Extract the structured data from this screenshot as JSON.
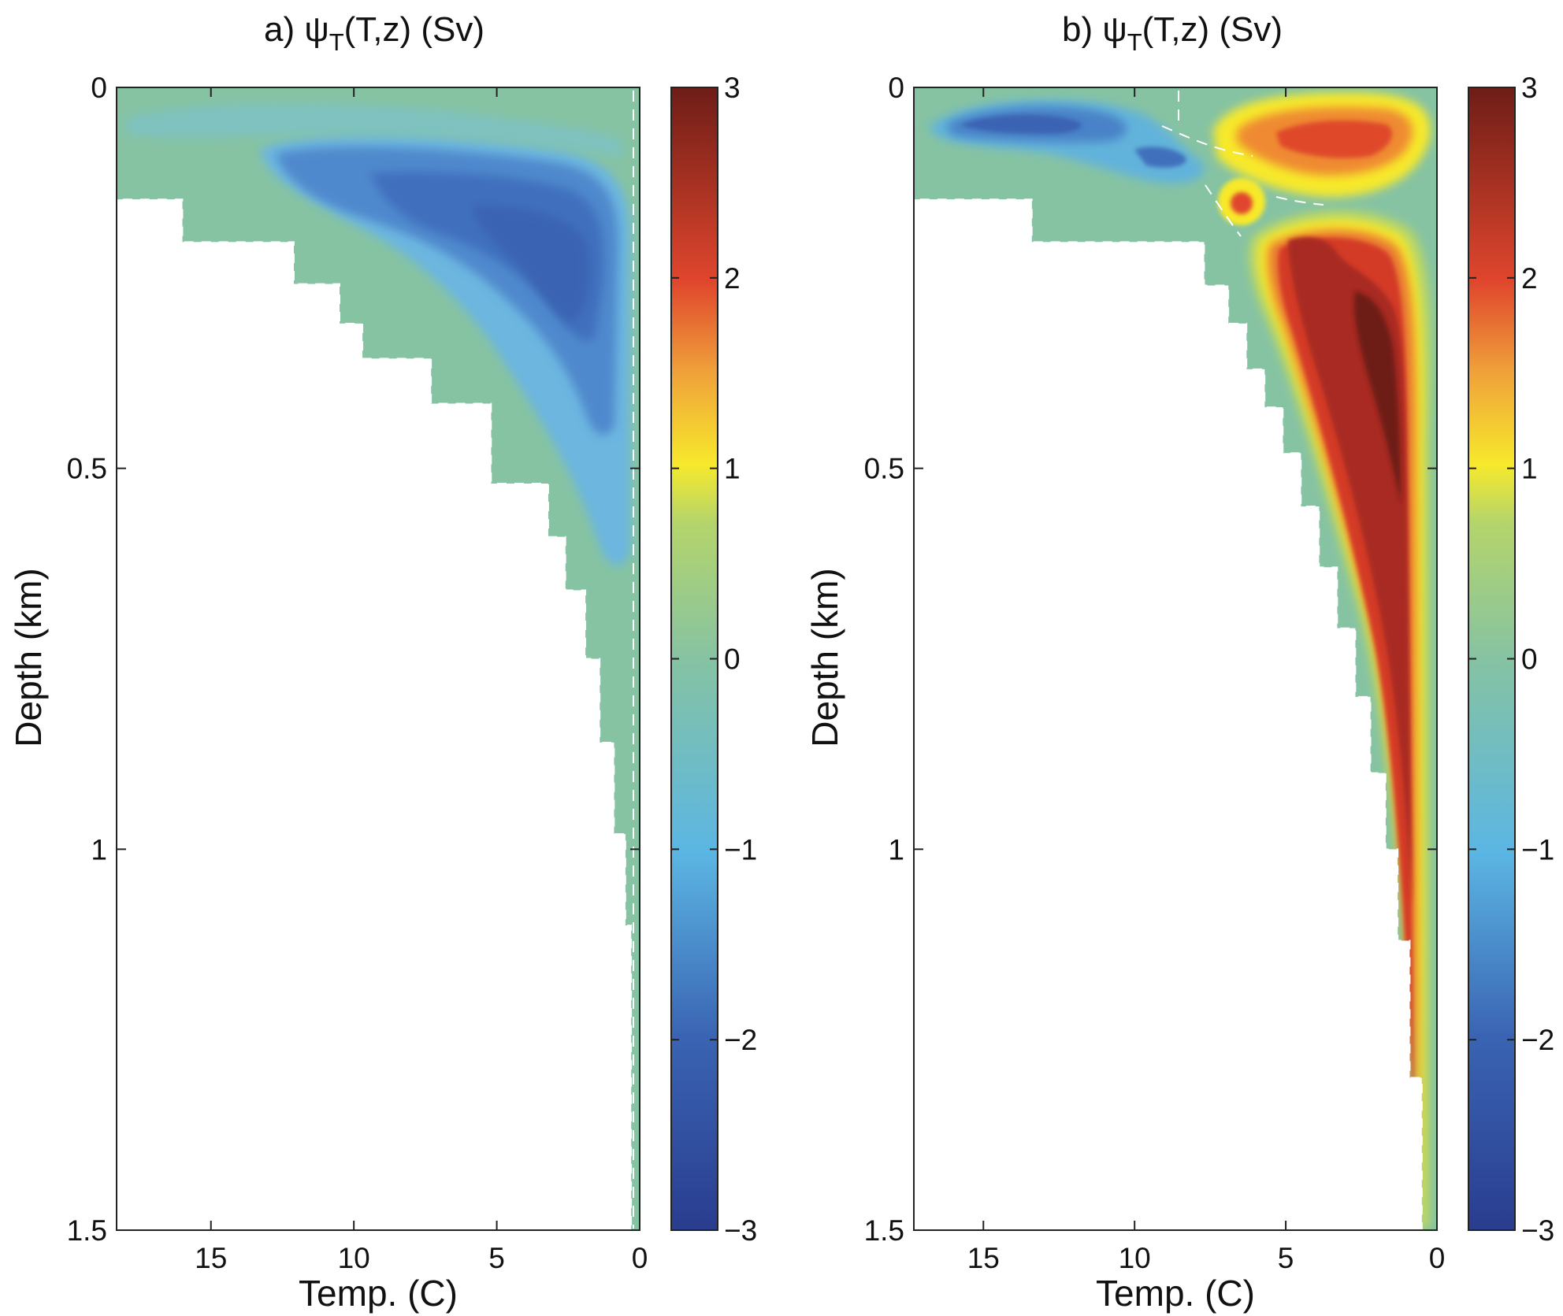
{
  "chart_data": [
    {
      "type": "heatmap",
      "panel": "a",
      "title": {
        "prefix": "a) ψ",
        "subscript": "T",
        "suffix": "(T,z) (Sv)"
      },
      "xlabel": "Temp. (C)",
      "ylabel": "Depth (km)",
      "xlim": [
        18.3,
        0
      ],
      "ylim": [
        0,
        1.5
      ],
      "xticks": [
        "15",
        "10",
        "5",
        "0"
      ],
      "xtick_values": [
        15,
        10,
        5,
        0
      ],
      "yticks": [
        "0",
        "0.5",
        "1",
        "1.5"
      ],
      "ytick_values": [
        0,
        0.5,
        1,
        1.5
      ],
      "colorbar": {
        "range": [
          -3,
          3
        ],
        "ticks": [
          "3",
          "2",
          "1",
          "0",
          "−1",
          "−2",
          "−3"
        ],
        "tick_values": [
          3,
          2,
          1,
          0,
          -1,
          -2,
          -3
        ]
      },
      "features": [
        {
          "kind": "min",
          "T": 3.0,
          "z": 0.28,
          "value": -2.2
        },
        {
          "kind": "min",
          "T": 6.0,
          "z": 0.2,
          "value": -2.1
        },
        {
          "kind": "min",
          "T": 10.5,
          "z": 0.1,
          "value": -1.6
        }
      ]
    },
    {
      "type": "heatmap",
      "panel": "b",
      "title": {
        "prefix": "b) ψ",
        "subscript": "T",
        "suffix": "(T,z) (Sv)"
      },
      "xlabel": "Temp. (C)",
      "ylabel": "Depth (km)",
      "xlim": [
        17.3,
        0
      ],
      "ylim": [
        0,
        1.5
      ],
      "xticks": [
        "15",
        "10",
        "5",
        "0"
      ],
      "xtick_values": [
        15,
        10,
        5,
        0
      ],
      "yticks": [
        "0",
        "0.5",
        "1",
        "1.5"
      ],
      "ytick_values": [
        0,
        0.5,
        1,
        1.5
      ],
      "colorbar": {
        "range": [
          -3,
          3
        ],
        "ticks": [
          "3",
          "2",
          "1",
          "0",
          "−1",
          "−2",
          "−3"
        ],
        "tick_values": [
          3,
          2,
          1,
          0,
          -1,
          -2,
          -3
        ]
      },
      "features": [
        {
          "kind": "min",
          "T": 13.5,
          "z": 0.05,
          "value": -2.3
        },
        {
          "kind": "min",
          "T": 9.0,
          "z": 0.09,
          "value": -1.8
        },
        {
          "kind": "max",
          "T": 4.0,
          "z": 0.05,
          "value": 2.1
        },
        {
          "kind": "max",
          "T": 6.5,
          "z": 0.15,
          "value": 2.0
        },
        {
          "kind": "max",
          "T": 1.8,
          "z": 0.35,
          "value": 2.8
        },
        {
          "kind": "max",
          "T": 0.6,
          "z": 0.9,
          "value": 2.6
        }
      ]
    }
  ]
}
